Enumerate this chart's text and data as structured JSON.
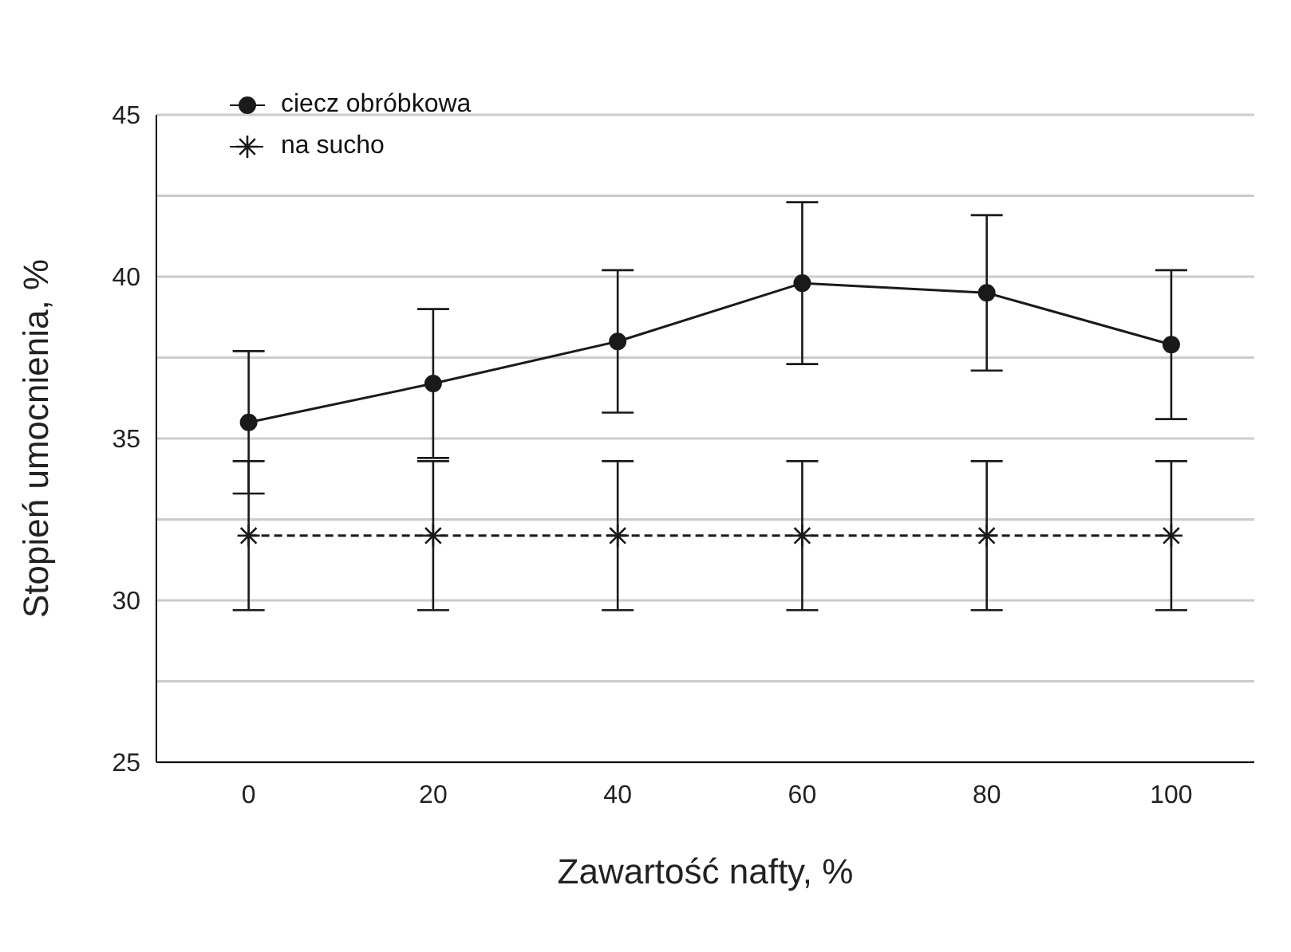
{
  "chart_data": {
    "type": "line",
    "xlabel": "Zawartość nafty, %",
    "ylabel": "Stopień umocnienia, %",
    "x": [
      0,
      20,
      40,
      60,
      80,
      100
    ],
    "xlim": [
      -10,
      109
    ],
    "xticks": [
      0,
      20,
      40,
      60,
      80,
      100
    ],
    "ylim": [
      25,
      45
    ],
    "yticks": [
      25,
      {
        "value": 27.5,
        "label": null
      },
      30,
      {
        "value": 32.5,
        "label": null
      },
      35,
      {
        "value": 37.5,
        "label": null
      },
      40,
      {
        "value": 42.5,
        "label": null
      },
      45
    ],
    "grid": "y",
    "legend": "top left",
    "series": [
      {
        "name": "ciecz obróbkowa",
        "color": "#1a1a1a",
        "marker": "circle",
        "line_style": "solid",
        "values": [
          35.5,
          36.7,
          38.0,
          39.8,
          39.5,
          37.9
        ],
        "errors": [
          [
            33.3,
            37.7
          ],
          [
            34.4,
            39.0
          ],
          [
            35.8,
            40.2
          ],
          [
            37.3,
            42.3
          ],
          [
            37.1,
            41.9
          ],
          [
            35.6,
            40.2
          ]
        ]
      },
      {
        "name": "na sucho",
        "color": "#1a1a1a",
        "marker": "cross",
        "line_style": "dashed",
        "values": [
          32,
          32,
          32,
          32,
          32,
          32
        ],
        "errors": [
          [
            29.7,
            34.3
          ],
          [
            29.7,
            34.3
          ],
          [
            29.7,
            34.3
          ],
          [
            29.7,
            34.3
          ],
          [
            29.7,
            34.3
          ],
          [
            29.7,
            34.3
          ]
        ]
      }
    ]
  }
}
